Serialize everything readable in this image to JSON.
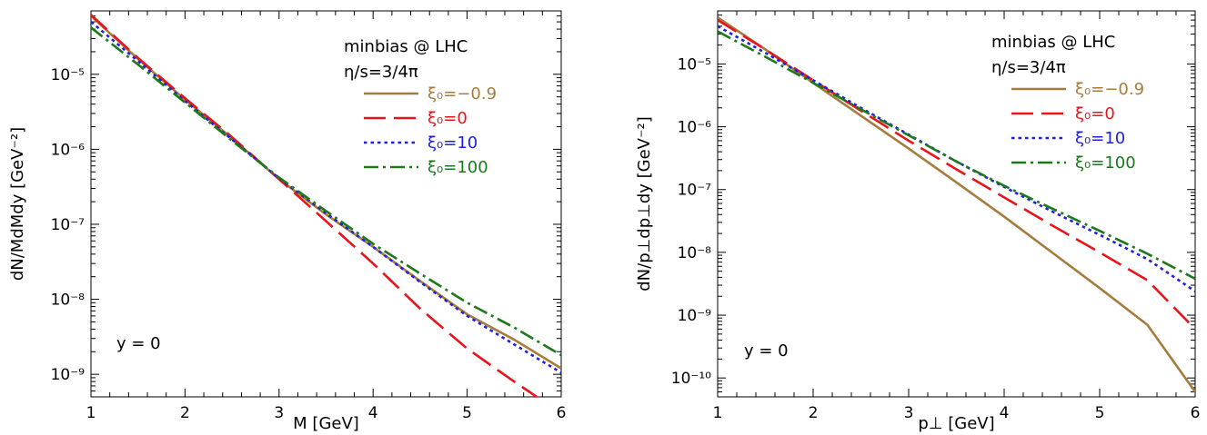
{
  "chart_data": [
    {
      "type": "line",
      "xlabel": "M [GeV]",
      "ylabel": "dN/MdMdy [GeV⁻²]",
      "xlim": [
        1,
        6
      ],
      "ylim": [
        5e-10,
        7e-05
      ],
      "yscale": "log",
      "xticks": [
        "1",
        "2",
        "3",
        "4",
        "5",
        "6"
      ],
      "yticks": [
        {
          "value": 1e-09,
          "label": "10⁻⁹"
        },
        {
          "value": 1e-08,
          "label": "10⁻⁸"
        },
        {
          "value": 1e-07,
          "label": "10⁻⁷"
        },
        {
          "value": 1e-06,
          "label": "10⁻⁶"
        },
        {
          "value": 1e-05,
          "label": "10⁻⁵"
        }
      ],
      "legend_header": [
        "minbias @ LHC",
        "η/s=3/4π"
      ],
      "legend_position": "top-right",
      "annotation": "y = 0",
      "x": [
        1,
        1.5,
        2,
        2.5,
        3,
        3.5,
        4,
        4.5,
        5,
        5.5,
        6
      ],
      "series": [
        {
          "name": "ξ₀=−0.9",
          "color": "#a67c3d",
          "dash": "solid",
          "values": [
            6e-05,
            1.6e-05,
            4.6e-06,
            1.4e-06,
            4e-07,
            1.35e-07,
            5e-08,
            1.75e-08,
            6.3e-09,
            2.9e-09,
            1.2e-09
          ]
        },
        {
          "name": "ξ₀=0",
          "color": "#e8141c",
          "dash": "long",
          "values": [
            6.2e-05,
            1.65e-05,
            4.8e-06,
            1.45e-06,
            4e-07,
            1.1e-07,
            3e-08,
            7.5e-09,
            2.2e-09,
            8e-10,
            3e-10
          ]
        },
        {
          "name": "ξ₀=10",
          "color": "#1f1fe0",
          "dash": "dot",
          "values": [
            5e-05,
            1.5e-05,
            4.4e-06,
            1.35e-06,
            4.1e-07,
            1.4e-07,
            5e-08,
            1.7e-08,
            6e-09,
            2.5e-09,
            1.05e-09
          ]
        },
        {
          "name": "ξ₀=100",
          "color": "#1a7a1a",
          "dash": "dashdot",
          "values": [
            4.2e-05,
            1.35e-05,
            4.2e-06,
            1.3e-06,
            4.2e-07,
            1.5e-07,
            5.5e-08,
            2.2e-08,
            9e-09,
            4.2e-09,
            1.8e-09
          ]
        }
      ]
    },
    {
      "type": "line",
      "xlabel": "p⊥ [GeV]",
      "ylabel": "dN/p⊥dp⊥dy [GeV⁻²]",
      "xlim": [
        1,
        6
      ],
      "ylim": [
        5e-11,
        7e-05
      ],
      "yscale": "log",
      "xticks": [
        "1",
        "2",
        "3",
        "4",
        "5",
        "6"
      ],
      "yticks": [
        {
          "value": 1e-10,
          "label": "10⁻¹⁰"
        },
        {
          "value": 1e-09,
          "label": "10⁻⁹"
        },
        {
          "value": 1e-08,
          "label": "10⁻⁸"
        },
        {
          "value": 1e-07,
          "label": "10⁻⁷"
        },
        {
          "value": 1e-06,
          "label": "10⁻⁶"
        },
        {
          "value": 1e-05,
          "label": "10⁻⁵"
        }
      ],
      "legend_header": [
        "minbias @ LHC",
        "η/s=3/4π"
      ],
      "legend_position": "top-right",
      "annotation": "y = 0",
      "x": [
        1,
        1.5,
        2,
        2.5,
        3,
        3.5,
        4,
        4.5,
        5,
        5.5,
        6
      ],
      "series": [
        {
          "name": "ξ₀=−0.9",
          "color": "#a67c3d",
          "dash": "solid",
          "values": [
            5.5e-05,
            1.7e-05,
            5e-06,
            1.5e-06,
            4.5e-07,
            1.3e-07,
            3.7e-08,
            1e-08,
            2.7e-09,
            7e-10,
            6e-11
          ]
        },
        {
          "name": "ξ₀=0",
          "color": "#e8141c",
          "dash": "long",
          "values": [
            5e-05,
            1.7e-05,
            5.5e-06,
            1.8e-06,
            6e-07,
            2.1e-07,
            7.5e-08,
            2.7e-08,
            1e-08,
            3.6e-09,
            6e-10
          ]
        },
        {
          "name": "ξ₀=10",
          "color": "#1f1fe0",
          "dash": "dot",
          "values": [
            4e-05,
            1.5e-05,
            5.5e-06,
            2e-06,
            7.5e-07,
            2.8e-07,
            1.1e-07,
            4.5e-08,
            1.9e-08,
            7.8e-09,
            2.4e-09
          ]
        },
        {
          "name": "ξ₀=100",
          "color": "#1a7a1a",
          "dash": "dashdot",
          "values": [
            3.3e-05,
            1.3e-05,
            5e-06,
            1.9e-06,
            7.3e-07,
            2.8e-07,
            1.15e-07,
            5e-08,
            2.2e-08,
            9.5e-09,
            3.8e-09
          ]
        }
      ]
    }
  ]
}
